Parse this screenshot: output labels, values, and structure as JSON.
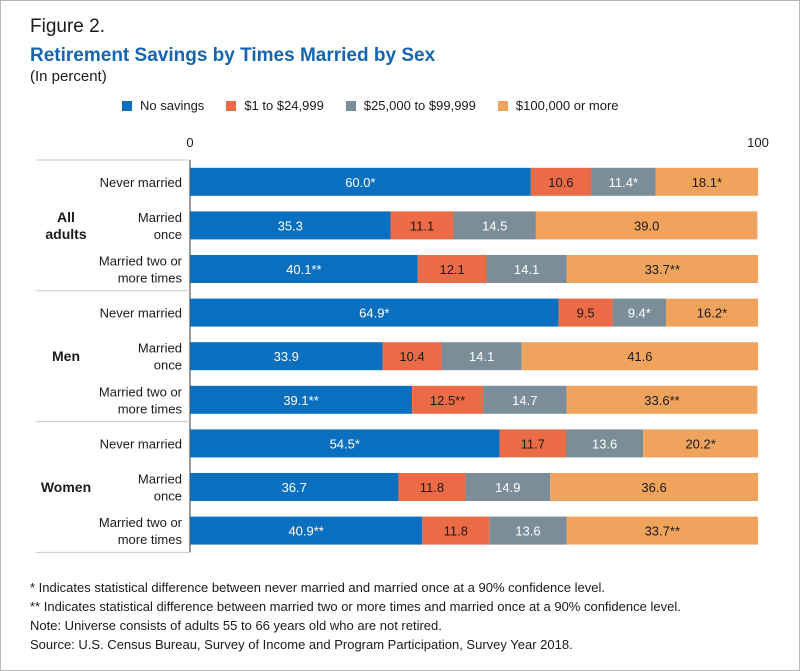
{
  "figure_label": "Figure 2.",
  "title": "Retirement Savings by Times Married by Sex",
  "subtitle": "(In percent)",
  "colors": {
    "no_savings": "#0b6fbf",
    "low": "#ec6b47",
    "mid": "#7b8d98",
    "high": "#f0a35c",
    "title": "#1565b0"
  },
  "chart_data": {
    "type": "bar",
    "orientation": "horizontal",
    "stacked": true,
    "xlim": [
      0,
      100
    ],
    "x_ticks": [
      "0",
      "100"
    ],
    "legend_position": "top",
    "series": [
      {
        "name": "No savings",
        "color_key": "no_savings"
      },
      {
        "name": "$1 to $24,999",
        "color_key": "low"
      },
      {
        "name": "$25,000 to $99,999",
        "color_key": "mid"
      },
      {
        "name": "$100,000 or more",
        "color_key": "high"
      }
    ],
    "groups": [
      {
        "name": "All adults",
        "name_lines": [
          "All",
          "adults"
        ],
        "rows": [
          {
            "label_lines": [
              "Never married"
            ],
            "values": [
              60.0,
              10.6,
              11.4,
              18.1
            ],
            "labels": [
              "60.0*",
              "10.6",
              "11.4*",
              "18.1*"
            ]
          },
          {
            "label_lines": [
              "Married",
              "once"
            ],
            "values": [
              35.3,
              11.1,
              14.5,
              39.0
            ],
            "labels": [
              "35.3",
              "11.1",
              "14.5",
              "39.0"
            ]
          },
          {
            "label_lines": [
              "Married two or",
              "more times"
            ],
            "values": [
              40.1,
              12.1,
              14.1,
              33.7
            ],
            "labels": [
              "40.1**",
              "12.1",
              "14.1",
              "33.7**"
            ]
          }
        ]
      },
      {
        "name": "Men",
        "name_lines": [
          "Men"
        ],
        "rows": [
          {
            "label_lines": [
              "Never married"
            ],
            "values": [
              64.9,
              9.5,
              9.4,
              16.2
            ],
            "labels": [
              "64.9*",
              "9.5",
              "9.4*",
              "16.2*"
            ]
          },
          {
            "label_lines": [
              "Married",
              "once"
            ],
            "values": [
              33.9,
              10.4,
              14.1,
              41.6
            ],
            "labels": [
              "33.9",
              "10.4",
              "14.1",
              "41.6"
            ]
          },
          {
            "label_lines": [
              "Married two or",
              "more times"
            ],
            "values": [
              39.1,
              12.5,
              14.7,
              33.6
            ],
            "labels": [
              "39.1**",
              "12.5**",
              "14.7",
              "33.6**"
            ]
          }
        ]
      },
      {
        "name": "Women",
        "name_lines": [
          "Women"
        ],
        "rows": [
          {
            "label_lines": [
              "Never married"
            ],
            "values": [
              54.5,
              11.7,
              13.6,
              20.2
            ],
            "labels": [
              "54.5*",
              "11.7",
              "13.6",
              "20.2*"
            ]
          },
          {
            "label_lines": [
              "Married",
              "once"
            ],
            "values": [
              36.7,
              11.8,
              14.9,
              36.6
            ],
            "labels": [
              "36.7",
              "11.8",
              "14.9",
              "36.6"
            ]
          },
          {
            "label_lines": [
              "Married two or",
              "more times"
            ],
            "values": [
              40.9,
              11.8,
              13.6,
              33.7
            ],
            "labels": [
              "40.9**",
              "11.8",
              "13.6",
              "33.7**"
            ]
          }
        ]
      }
    ]
  },
  "notes": [
    "* Indicates statistical difference between never married and married once at a 90% confidence level.",
    "** Indicates statistical difference between married two or more times and married once at a 90% confidence level.",
    "Note: Universe consists of adults 55 to 66 years old who are not retired.",
    "Source: U.S. Census Bureau, Survey of Income and Program Participation, Survey Year 2018."
  ]
}
